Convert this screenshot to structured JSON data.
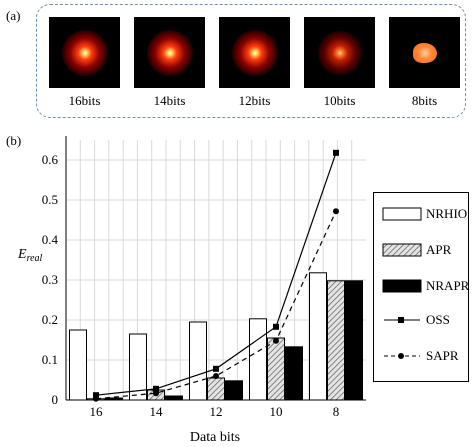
{
  "panel_a": {
    "label": "(a)",
    "images": [
      {
        "label": "16bits"
      },
      {
        "label": "14bits"
      },
      {
        "label": "12bits"
      },
      {
        "label": "10bits"
      },
      {
        "label": "8bits"
      }
    ]
  },
  "panel_b": {
    "label": "(b)"
  },
  "chart_data": {
    "type": "bar",
    "xlabel": "Data bits",
    "ylabel": "E_real",
    "ylabel_main": "E",
    "ylabel_sub": "real",
    "categories": [
      "16",
      "14",
      "12",
      "10",
      "8"
    ],
    "ylim": [
      0,
      0.65
    ],
    "yticks": [
      "0",
      "0.1",
      "0.2",
      "0.3",
      "0.4",
      "0.5",
      "0.6"
    ],
    "grid": true,
    "legend_position": "right",
    "bar_series": [
      {
        "name": "NRHIO",
        "values": [
          0.175,
          0.165,
          0.195,
          0.203,
          0.318
        ],
        "fill": "#ffffff",
        "pattern": "none"
      },
      {
        "name": "APR",
        "values": [
          0.003,
          0.025,
          0.055,
          0.155,
          0.298
        ],
        "fill": "#bdbdbd",
        "pattern": "hatch"
      },
      {
        "name": "NRAPR",
        "values": [
          0.005,
          0.01,
          0.048,
          0.133,
          0.298
        ],
        "fill": "#000000",
        "pattern": "none"
      }
    ],
    "line_series": [
      {
        "name": "OSS",
        "values": [
          0.012,
          0.028,
          0.078,
          0.183,
          0.618
        ],
        "marker": "square",
        "dash": "solid"
      },
      {
        "name": "SAPR",
        "values": [
          0.003,
          0.017,
          0.06,
          0.148,
          0.472
        ],
        "marker": "circle",
        "dash": "dashed"
      }
    ],
    "legend": [
      "NRHIO",
      "APR",
      "NRAPR",
      "OSS",
      "SAPR"
    ]
  }
}
